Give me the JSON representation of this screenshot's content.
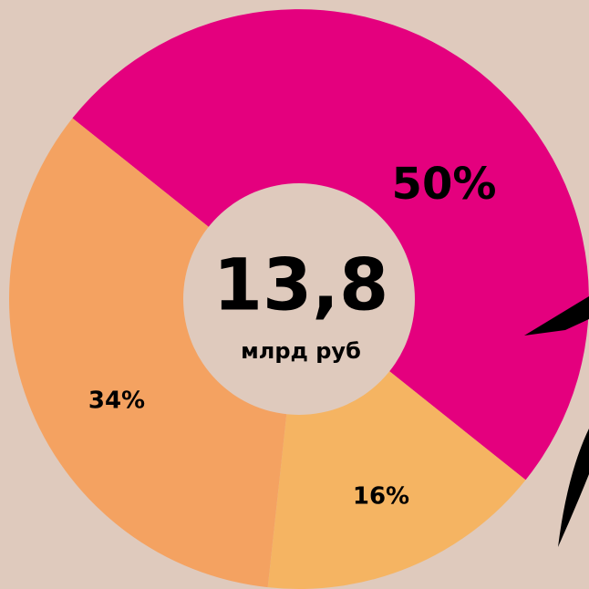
{
  "chart_data": {
    "type": "donut",
    "center_value": "13,8",
    "center_label": "млрд руб",
    "categories": [
      null,
      null,
      null
    ],
    "values": [
      50,
      16,
      34
    ],
    "value_labels": [
      "50%",
      "16%",
      "34%"
    ],
    "colors": [
      "#e4007e",
      "#f5b462",
      "#f4a261"
    ]
  }
}
